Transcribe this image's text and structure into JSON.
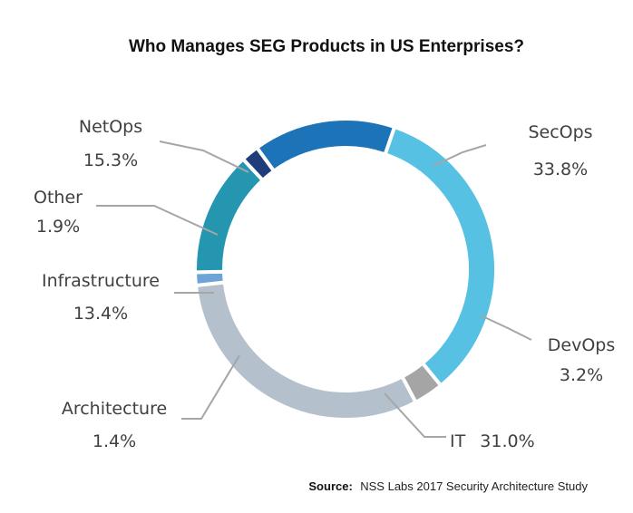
{
  "chart_data": {
    "type": "pie",
    "style": "donut",
    "title": "Who Manages SEG Products in US Enterprises?",
    "slices": [
      {
        "label": "SecOps",
        "value_label": "33.8%",
        "value": 33.8,
        "color": "#56c1e3"
      },
      {
        "label": "DevOps",
        "value_label": "3.2%",
        "value": 3.2,
        "color": "#a5a5a5"
      },
      {
        "label": "IT",
        "value_label": "31.0%",
        "value": 31.0,
        "color": "#b4c0cc"
      },
      {
        "label": "Architecture",
        "value_label": "1.4%",
        "value": 1.4,
        "color": "#6fa3d8"
      },
      {
        "label": "Infrastructure",
        "value_label": "13.4%",
        "value": 13.4,
        "color": "#2596b0"
      },
      {
        "label": "Other",
        "value_label": "1.9%",
        "value": 1.9,
        "color": "#1f3d7a"
      },
      {
        "label": "NetOps",
        "value_label": "15.3%",
        "value": 15.3,
        "color": "#1c73b7"
      }
    ],
    "source_prefix": "Source:",
    "source_text": "NSS Labs 2017 Security Architecture Study"
  }
}
